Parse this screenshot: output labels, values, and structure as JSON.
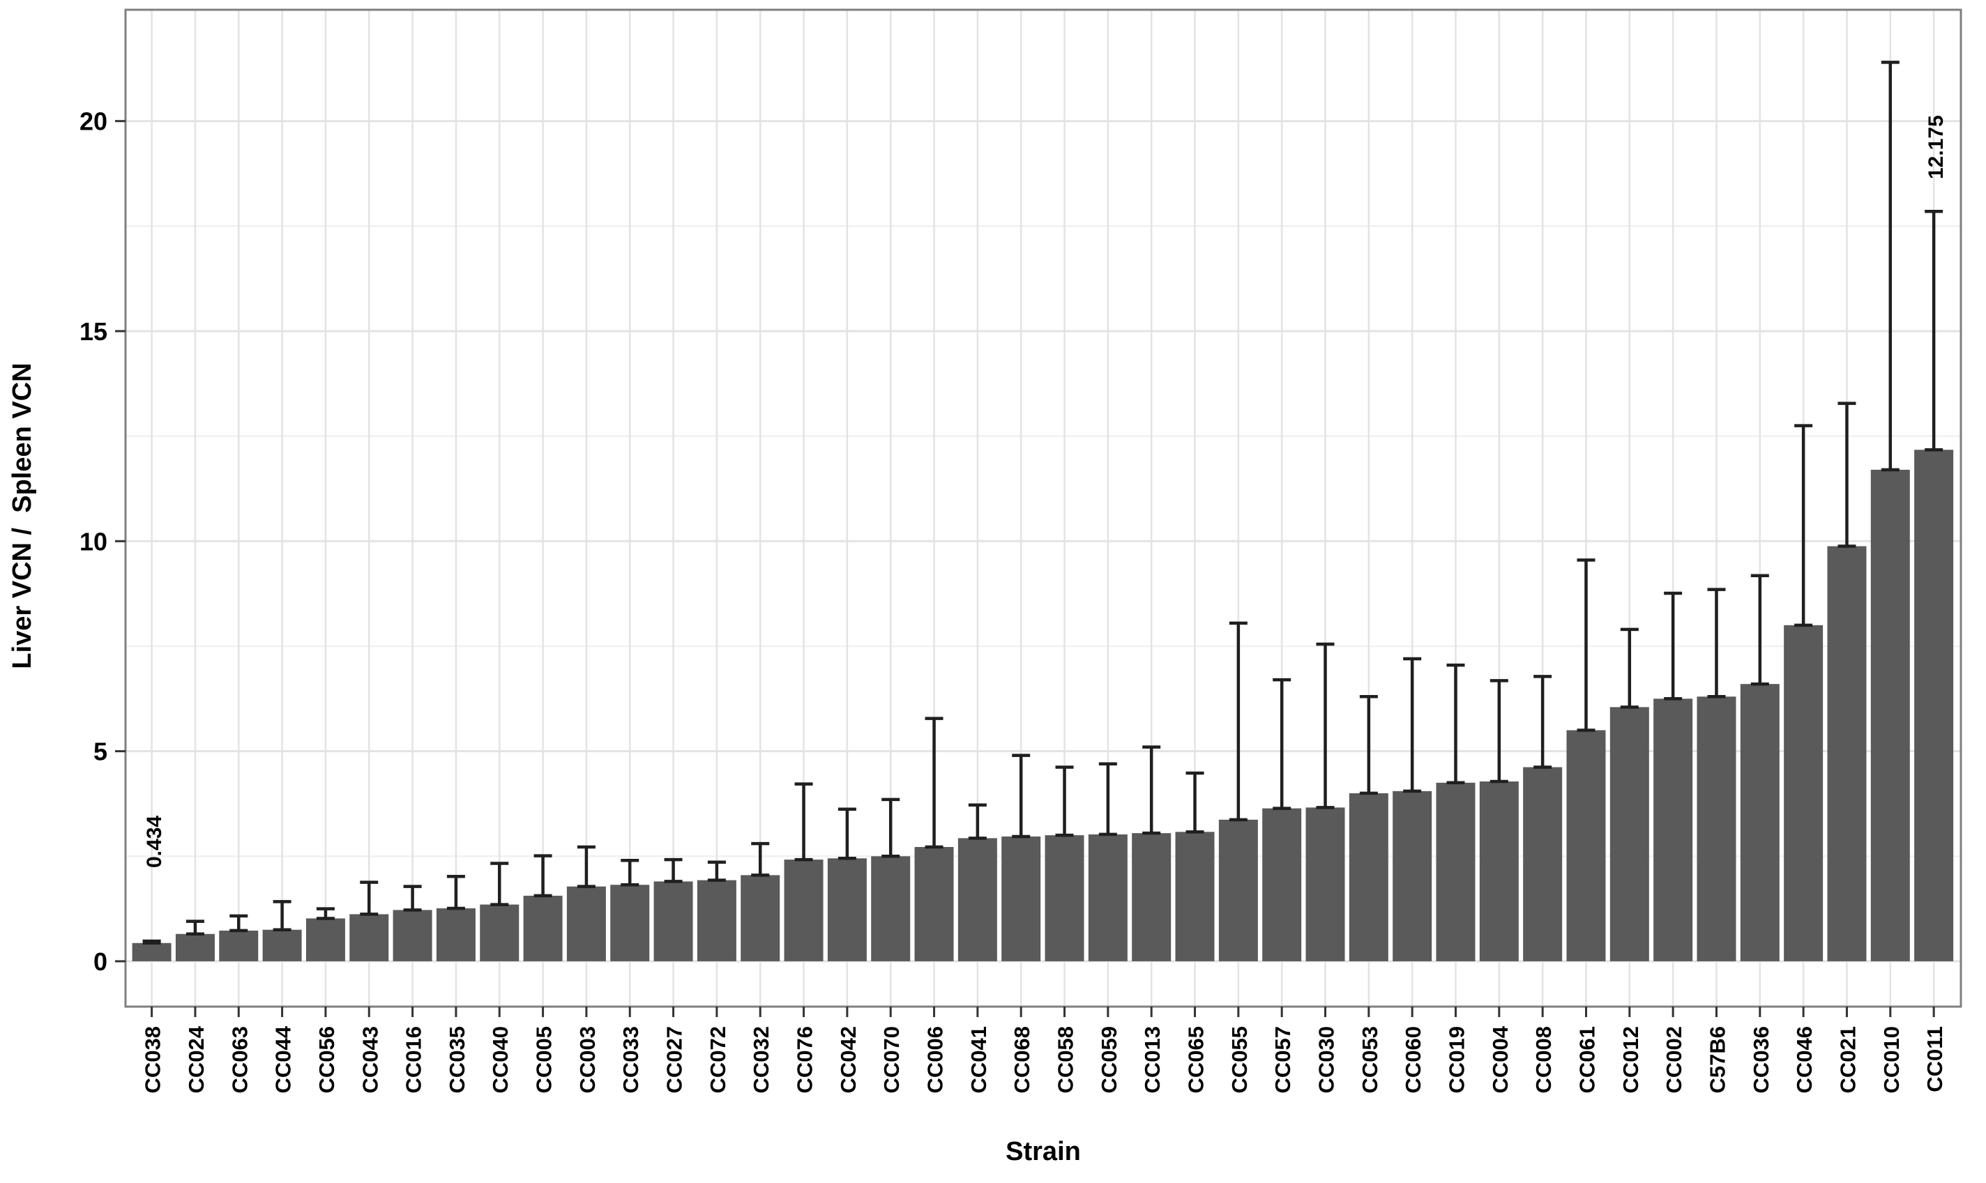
{
  "figure": {
    "background": "#ffffff"
  },
  "chart_data": {
    "type": "bar",
    "title": "",
    "xlabel": "Strain",
    "ylabel": "Liver VCN /  Spleen VCN",
    "legend": false,
    "grid": true,
    "ylim": [
      -1.08,
      22.65
    ],
    "yticks": [
      0,
      5,
      10,
      15,
      20
    ],
    "yminorticks": [
      2.5,
      7.5,
      12.5,
      17.5
    ],
    "categories": [
      "CC038",
      "CC024",
      "CC063",
      "CC044",
      "CC056",
      "CC043",
      "CC016",
      "CC035",
      "CC040",
      "CC005",
      "CC003",
      "CC033",
      "CC027",
      "CC072",
      "CC032",
      "CC076",
      "CC042",
      "CC070",
      "CC006",
      "CC041",
      "CC068",
      "CC058",
      "CC059",
      "CC013",
      "CC065",
      "CC055",
      "CC057",
      "CC030",
      "CC053",
      "CC060",
      "CC019",
      "CC004",
      "CC008",
      "CC061",
      "CC012",
      "CC002",
      "C57B6",
      "CC036",
      "CC046",
      "CC021",
      "CC010",
      "CC011"
    ],
    "values": [
      0.434,
      0.65,
      0.73,
      0.75,
      1.02,
      1.12,
      1.22,
      1.26,
      1.35,
      1.56,
      1.78,
      1.82,
      1.9,
      1.93,
      2.05,
      2.42,
      2.45,
      2.5,
      2.72,
      2.93,
      2.97,
      3.0,
      3.02,
      3.05,
      3.08,
      3.37,
      3.64,
      3.66,
      4.0,
      4.05,
      4.25,
      4.28,
      4.62,
      5.5,
      6.05,
      6.25,
      6.3,
      6.6,
      8.0,
      9.88,
      11.7,
      12.175
    ],
    "error_upper": [
      0.48,
      0.95,
      1.08,
      1.42,
      1.25,
      1.88,
      1.78,
      2.02,
      2.33,
      2.51,
      2.72,
      2.4,
      2.42,
      2.36,
      2.8,
      4.22,
      3.62,
      3.85,
      5.78,
      3.72,
      4.9,
      4.62,
      4.7,
      5.1,
      4.48,
      8.05,
      6.7,
      7.55,
      6.3,
      7.2,
      7.05,
      6.68,
      6.78,
      9.55,
      7.9,
      8.76,
      8.85,
      9.18,
      12.75,
      13.28,
      21.4,
      17.85
    ],
    "annotations": [
      {
        "text": "0.434",
        "category": "CC038"
      },
      {
        "text": "12.175",
        "category": "CC011"
      }
    ],
    "colors": {
      "bar": "#5a5a5a",
      "error": "#1f1f1f",
      "grid_major": "#e3e3e3",
      "grid_minor": "#f1f1f1",
      "panel_border": "#7f7f7f",
      "tick": "#333333",
      "text": "#000000",
      "background": "#ffffff"
    }
  }
}
